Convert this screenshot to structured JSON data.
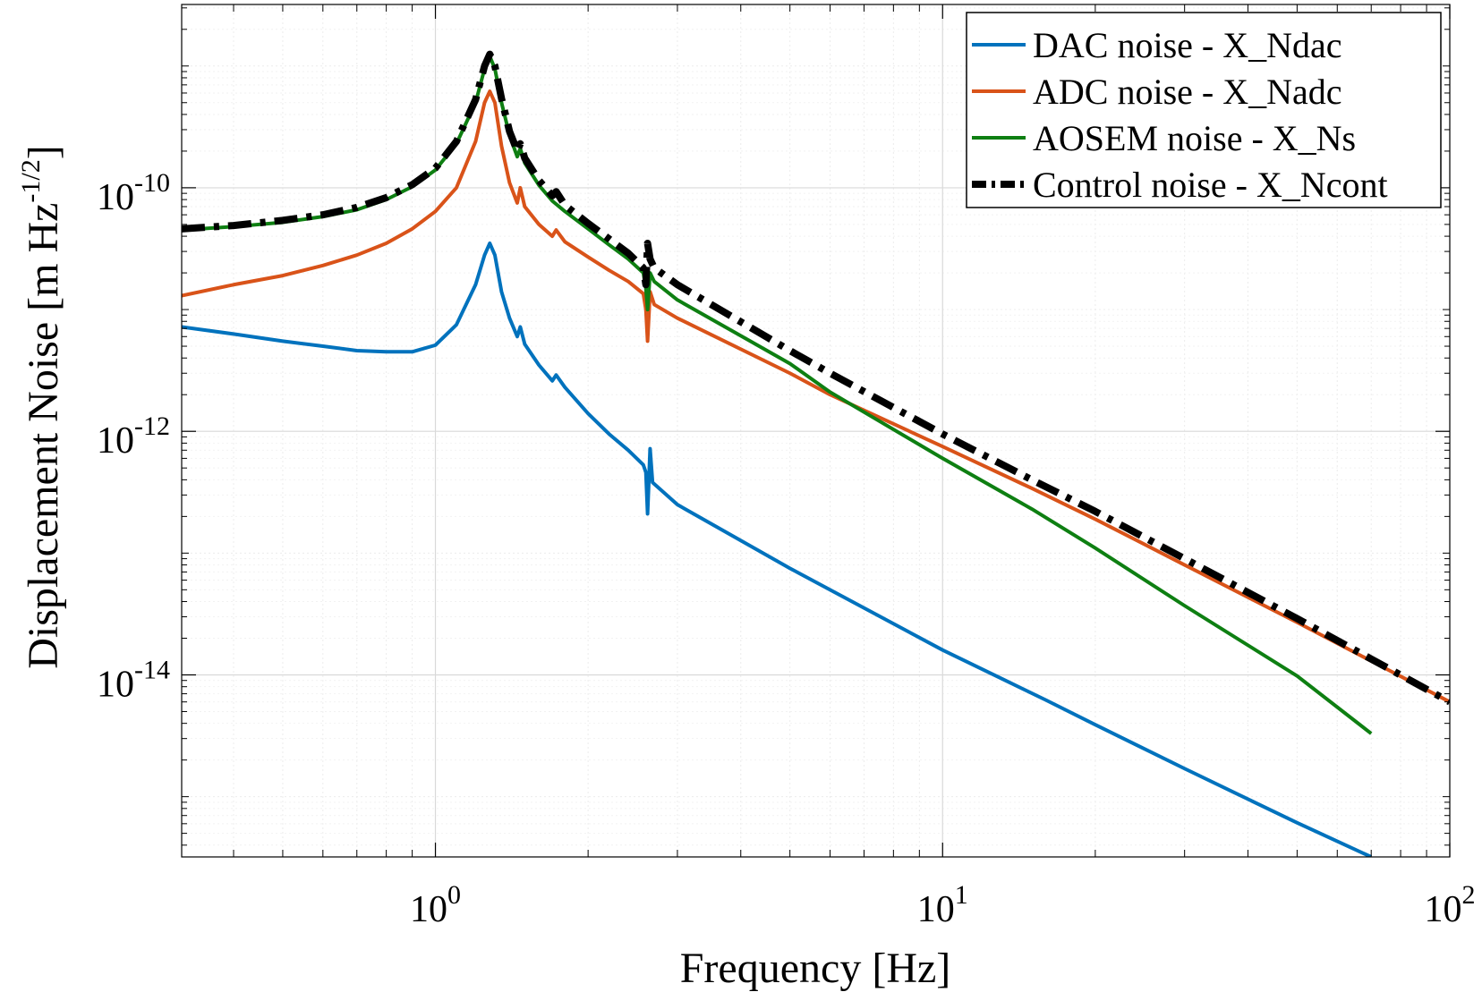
{
  "chart_data": {
    "type": "line",
    "scale": {
      "x": "log",
      "y": "log"
    },
    "xlabel": "Frequency [Hz]",
    "ylabel": "Displacement Noise [m Hz",
    "ylabel_exponent": "-1/2",
    "ylabel_suffix": "]",
    "xlim": [
      0.316,
      100
    ],
    "ylim": [
      3.2e-16,
      3.2e-09
    ],
    "grid": true,
    "legend_location": "top-right",
    "x_ticks": [
      {
        "base": "10",
        "exp": "0",
        "value": 1
      },
      {
        "base": "10",
        "exp": "1",
        "value": 10
      },
      {
        "base": "10",
        "exp": "2",
        "value": 100
      }
    ],
    "y_ticks": [
      {
        "base": "10",
        "exp": "-10",
        "value": 1e-10
      },
      {
        "base": "10",
        "exp": "-12",
        "value": 1e-12
      },
      {
        "base": "10",
        "exp": "-14",
        "value": 1e-14
      }
    ],
    "series": [
      {
        "name": "DAC noise - X_Ndac",
        "color": "#0072BD",
        "style": "solid",
        "points": [
          [
            0.316,
            7.2e-12
          ],
          [
            0.4,
            6.3e-12
          ],
          [
            0.5,
            5.5e-12
          ],
          [
            0.6,
            5e-12
          ],
          [
            0.7,
            4.6e-12
          ],
          [
            0.8,
            4.5e-12
          ],
          [
            0.9,
            4.5e-12
          ],
          [
            1.0,
            5.1e-12
          ],
          [
            1.1,
            7.5e-12
          ],
          [
            1.2,
            1.6e-11
          ],
          [
            1.25,
            2.8e-11
          ],
          [
            1.28,
            3.5e-11
          ],
          [
            1.31,
            2.8e-11
          ],
          [
            1.35,
            1.4e-11
          ],
          [
            1.4,
            8.5e-12
          ],
          [
            1.45,
            6e-12
          ],
          [
            1.47,
            7.2e-12
          ],
          [
            1.5,
            5.2e-12
          ],
          [
            1.6,
            3.5e-12
          ],
          [
            1.7,
            2.6e-12
          ],
          [
            1.73,
            2.9e-12
          ],
          [
            1.8,
            2.3e-12
          ],
          [
            2.0,
            1.4e-12
          ],
          [
            2.2,
            9.5e-13
          ],
          [
            2.4,
            7e-13
          ],
          [
            2.57,
            5.3e-13
          ],
          [
            2.6,
            4.6e-13
          ],
          [
            2.62,
            2.1e-13
          ],
          [
            2.65,
            7.2e-13
          ],
          [
            2.68,
            3.8e-13
          ],
          [
            3.0,
            2.5e-13
          ],
          [
            5,
            7.5e-14
          ],
          [
            10,
            1.6e-14
          ],
          [
            16,
            6.2e-15
          ],
          [
            20,
            3.9e-15
          ],
          [
            30,
            1.7e-15
          ],
          [
            50,
            6.1e-16
          ],
          [
            70,
            3.2e-16
          ]
        ]
      },
      {
        "name": "ADC noise - X_Nadc",
        "color": "#D95319",
        "style": "solid",
        "points": [
          [
            0.316,
            1.3e-11
          ],
          [
            0.4,
            1.6e-11
          ],
          [
            0.5,
            1.9e-11
          ],
          [
            0.6,
            2.3e-11
          ],
          [
            0.7,
            2.8e-11
          ],
          [
            0.8,
            3.5e-11
          ],
          [
            0.9,
            4.6e-11
          ],
          [
            1.0,
            6.4e-11
          ],
          [
            1.1,
            1e-10
          ],
          [
            1.2,
            2.4e-10
          ],
          [
            1.25,
            5e-10
          ],
          [
            1.28,
            6.2e-10
          ],
          [
            1.31,
            5e-10
          ],
          [
            1.35,
            2.2e-10
          ],
          [
            1.4,
            1.1e-10
          ],
          [
            1.45,
            7.5e-11
          ],
          [
            1.47,
            1e-10
          ],
          [
            1.5,
            7e-11
          ],
          [
            1.6,
            5e-11
          ],
          [
            1.7,
            4e-11
          ],
          [
            1.73,
            4.5e-11
          ],
          [
            1.8,
            3.6e-11
          ],
          [
            2.0,
            2.7e-11
          ],
          [
            2.2,
            2.1e-11
          ],
          [
            2.4,
            1.7e-11
          ],
          [
            2.57,
            1.35e-11
          ],
          [
            2.6,
            1e-11
          ],
          [
            2.62,
            5.5e-12
          ],
          [
            2.65,
            1.4e-11
          ],
          [
            2.7,
            1.1e-11
          ],
          [
            3.0,
            8.5e-12
          ],
          [
            5,
            3e-12
          ],
          [
            6,
            2e-12
          ],
          [
            10,
            7.5e-13
          ],
          [
            15,
            3.4e-13
          ],
          [
            20,
            1.9e-13
          ],
          [
            30,
            8e-14
          ],
          [
            50,
            2.7e-14
          ],
          [
            70,
            1.3e-14
          ],
          [
            100,
            6e-15
          ]
        ]
      },
      {
        "name": "AOSEM noise - X_Ns",
        "color": "#0E7F12",
        "style": "solid",
        "points": [
          [
            0.316,
            4.5e-11
          ],
          [
            0.4,
            4.8e-11
          ],
          [
            0.5,
            5.2e-11
          ],
          [
            0.6,
            5.8e-11
          ],
          [
            0.7,
            6.6e-11
          ],
          [
            0.8,
            8e-11
          ],
          [
            0.9,
            1.02e-10
          ],
          [
            1.0,
            1.4e-10
          ],
          [
            1.1,
            2.3e-10
          ],
          [
            1.2,
            5e-10
          ],
          [
            1.25,
            9.5e-10
          ],
          [
            1.28,
            1.2e-09
          ],
          [
            1.31,
            9.5e-10
          ],
          [
            1.35,
            5e-10
          ],
          [
            1.4,
            2.7e-10
          ],
          [
            1.45,
            1.8e-10
          ],
          [
            1.47,
            2.1e-10
          ],
          [
            1.5,
            1.6e-10
          ],
          [
            1.6,
            1.05e-10
          ],
          [
            1.7,
            7.8e-11
          ],
          [
            1.8,
            6.4e-11
          ],
          [
            2.0,
            4.6e-11
          ],
          [
            2.2,
            3.4e-11
          ],
          [
            2.4,
            2.6e-11
          ],
          [
            2.57,
            2e-11
          ],
          [
            2.6,
            1.5e-11
          ],
          [
            2.62,
            1e-11
          ],
          [
            2.65,
            2e-11
          ],
          [
            2.7,
            1.7e-11
          ],
          [
            3.0,
            1.2e-11
          ],
          [
            5,
            3.6e-12
          ],
          [
            6,
            2.1e-12
          ],
          [
            10,
            6e-13
          ],
          [
            15,
            2.3e-13
          ],
          [
            20,
            1.1e-13
          ],
          [
            30,
            3.7e-14
          ],
          [
            50,
            9.8e-15
          ],
          [
            70,
            3.3e-15
          ]
        ]
      },
      {
        "name": "Control noise - X_Ncont",
        "color": "#000000",
        "style": "dashdot",
        "points": [
          [
            0.316,
            4.6e-11
          ],
          [
            0.4,
            4.9e-11
          ],
          [
            0.5,
            5.4e-11
          ],
          [
            0.6,
            6e-11
          ],
          [
            0.7,
            6.9e-11
          ],
          [
            0.8,
            8.3e-11
          ],
          [
            0.9,
            1.06e-10
          ],
          [
            1.0,
            1.45e-10
          ],
          [
            1.1,
            2.4e-10
          ],
          [
            1.2,
            5.3e-10
          ],
          [
            1.25,
            1e-09
          ],
          [
            1.28,
            1.25e-09
          ],
          [
            1.31,
            1e-09
          ],
          [
            1.35,
            5.4e-10
          ],
          [
            1.4,
            2.9e-10
          ],
          [
            1.45,
            2e-10
          ],
          [
            1.47,
            2.3e-10
          ],
          [
            1.5,
            1.75e-10
          ],
          [
            1.6,
            1.15e-10
          ],
          [
            1.7,
            8.6e-11
          ],
          [
            1.73,
            9.3e-11
          ],
          [
            1.8,
            7.2e-11
          ],
          [
            2.0,
            5.1e-11
          ],
          [
            2.2,
            3.8e-11
          ],
          [
            2.4,
            2.9e-11
          ],
          [
            2.57,
            2.2e-11
          ],
          [
            2.6,
            1.6e-11
          ],
          [
            2.62,
            3.5e-11
          ],
          [
            2.65,
            2.6e-11
          ],
          [
            2.7,
            2.2e-11
          ],
          [
            3.0,
            1.6e-11
          ],
          [
            5,
            4.6e-12
          ],
          [
            6,
            3e-12
          ],
          [
            10,
            9.5e-13
          ],
          [
            15,
            4e-13
          ],
          [
            20,
            2.2e-13
          ],
          [
            30,
            9e-14
          ],
          [
            50,
            2.9e-14
          ],
          [
            70,
            1.35e-14
          ],
          [
            100,
            6e-15
          ]
        ]
      }
    ]
  }
}
